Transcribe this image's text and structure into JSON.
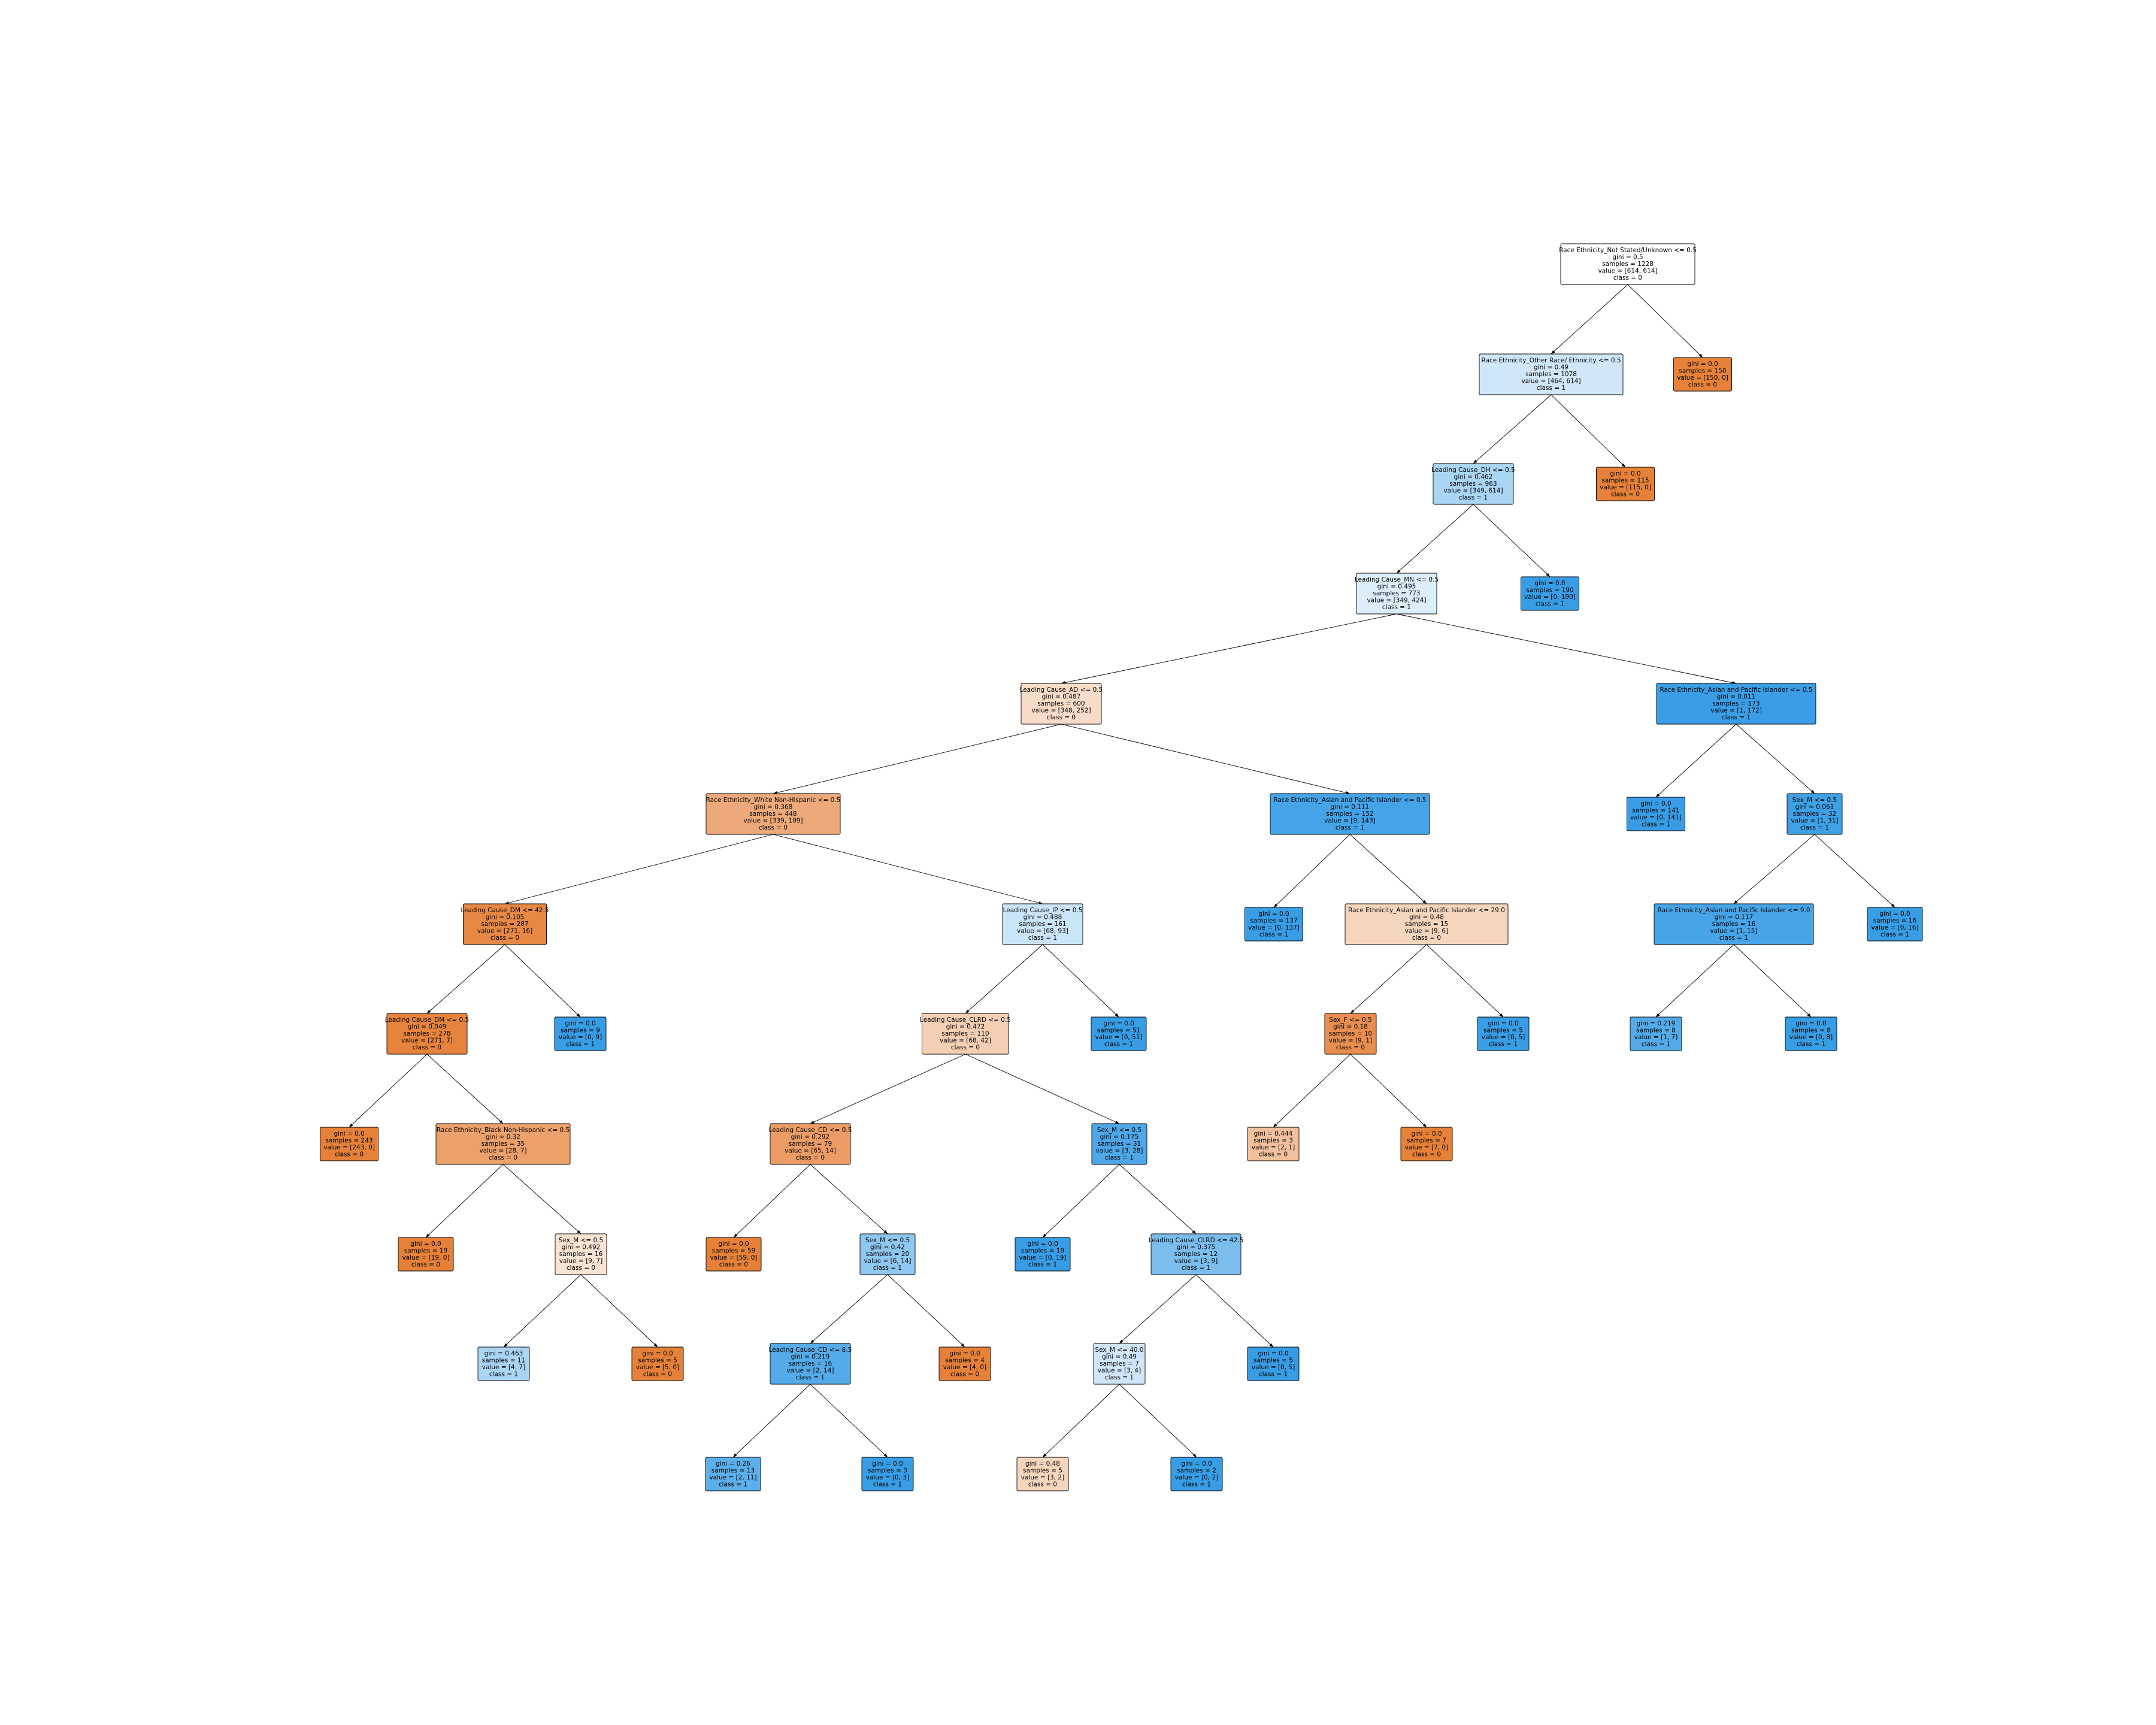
{
  "nodes": [
    {
      "id": "n0",
      "lines": [
        "Race Ethnicity_Not Stated/Unknown <= 0.5",
        "gini = 0.5",
        "samples = 1228",
        "value = [614, 614]",
        "class = 0"
      ],
      "fill": "#ffffff",
      "parent": null
    },
    {
      "id": "n1",
      "lines": [
        "Race Ethnicity_Other Race/ Ethnicity <= 0.5",
        "gini = 0.49",
        "samples = 1078",
        "value = [464, 614]",
        "class = 1"
      ],
      "fill": "#cfe7f9",
      "parent": "n0"
    },
    {
      "id": "n2",
      "lines": [
        "gini = 0.0",
        "samples = 150",
        "value = [150, 0]",
        "class = 0"
      ],
      "fill": "#e58139",
      "parent": "n0"
    },
    {
      "id": "n3",
      "lines": [
        "Leading Cause_DH <= 0.5",
        "gini = 0.462",
        "samples = 963",
        "value = [349, 614]",
        "class = 1"
      ],
      "fill": "#a9d4f4",
      "parent": "n1"
    },
    {
      "id": "n4",
      "lines": [
        "gini = 0.0",
        "samples = 115",
        "value = [115, 0]",
        "class = 0"
      ],
      "fill": "#e58139",
      "parent": "n1"
    },
    {
      "id": "n5",
      "lines": [
        "Leading Cause_MN <= 0.5",
        "gini = 0.495",
        "samples = 773",
        "value = [349, 424]",
        "class = 1"
      ],
      "fill": "#dceefa",
      "parent": "n3"
    },
    {
      "id": "n6",
      "lines": [
        "gini = 0.0",
        "samples = 190",
        "value = [0, 190]",
        "class = 1"
      ],
      "fill": "#399de5",
      "parent": "n3"
    },
    {
      "id": "n7",
      "lines": [
        "Leading Cause_AD <= 0.5",
        "gini = 0.487",
        "samples = 600",
        "value = [348, 252]",
        "class = 0"
      ],
      "fill": "#f8dcc8",
      "parent": "n5"
    },
    {
      "id": "n8",
      "lines": [
        "Race Ethnicity_Asian and Pacific Islander <= 0.5",
        "gini = 0.011",
        "samples = 173",
        "value = [1, 172]",
        "class = 1"
      ],
      "fill": "#3a9de5",
      "parent": "n5"
    },
    {
      "id": "n9",
      "lines": [
        "Race Ethnicity_White Non-Hispanic <= 0.5",
        "gini = 0.368",
        "samples = 448",
        "value = [339, 109]",
        "class = 0"
      ],
      "fill": "#eda979",
      "parent": "n7"
    },
    {
      "id": "n10",
      "lines": [
        "Race Ethnicity_Asian and Pacific Islander <= 0.5",
        "gini = 0.111",
        "samples = 152",
        "value = [9, 143]",
        "class = 1"
      ],
      "fill": "#45a3e7",
      "parent": "n7"
    },
    {
      "id": "n11",
      "lines": [
        "gini = 0.0",
        "samples = 141",
        "value = [0, 141]",
        "class = 1"
      ],
      "fill": "#399de5",
      "parent": "n8"
    },
    {
      "id": "n12",
      "lines": [
        "Sex_M <= 0.5",
        "gini = 0.061",
        "samples = 32",
        "value = [1, 31]",
        "class = 1"
      ],
      "fill": "#3fa0e6",
      "parent": "n8"
    },
    {
      "id": "n13",
      "lines": [
        "Leading Cause_DM <= 42.5",
        "gini = 0.105",
        "samples = 287",
        "value = [271, 16]",
        "class = 0"
      ],
      "fill": "#e78845",
      "parent": "n9"
    },
    {
      "id": "n14",
      "lines": [
        "Leading Cause_IP <= 0.5",
        "gini = 0.488",
        "samples = 161",
        "value = [68, 93]",
        "class = 1"
      ],
      "fill": "#cae5f8",
      "parent": "n9"
    },
    {
      "id": "n15",
      "lines": [
        "gini = 0.0",
        "samples = 137",
        "value = [0, 137]",
        "class = 1"
      ],
      "fill": "#399de5",
      "parent": "n10"
    },
    {
      "id": "n16",
      "lines": [
        "Race Ethnicity_Asian and Pacific Islander <= 29.0",
        "gini = 0.48",
        "samples = 15",
        "value = [9, 6]",
        "class = 0"
      ],
      "fill": "#f6d5bd",
      "parent": "n10"
    },
    {
      "id": "n17",
      "lines": [
        "Race Ethnicity_Asian and Pacific Islander <= 9.0",
        "gini = 0.117",
        "samples = 16",
        "value = [1, 15]",
        "class = 1"
      ],
      "fill": "#46a4e7",
      "parent": "n12"
    },
    {
      "id": "n18",
      "lines": [
        "gini = 0.0",
        "samples = 16",
        "value = [0, 16]",
        "class = 1"
      ],
      "fill": "#399de5",
      "parent": "n12"
    },
    {
      "id": "n19",
      "lines": [
        "Leading Cause_DM <= 0.5",
        "gini = 0.049",
        "samples = 278",
        "value = [271, 7]",
        "class = 0"
      ],
      "fill": "#e6843e",
      "parent": "n13"
    },
    {
      "id": "n20",
      "lines": [
        "gini = 0.0",
        "samples = 9",
        "value = [0, 9]",
        "class = 1"
      ],
      "fill": "#399de5",
      "parent": "n13"
    },
    {
      "id": "n21",
      "lines": [
        "Leading Cause_CLRD <= 0.5",
        "gini = 0.472",
        "samples = 110",
        "value = [68, 42]",
        "class = 0"
      ],
      "fill": "#f5cfb3",
      "parent": "n14"
    },
    {
      "id": "n22",
      "lines": [
        "gini = 0.0",
        "samples = 51",
        "value = [0, 51]",
        "class = 1"
      ],
      "fill": "#399de5",
      "parent": "n14"
    },
    {
      "id": "n23",
      "lines": [
        "Sex_F <= 0.5",
        "gini = 0.18",
        "samples = 10",
        "value = [9, 1]",
        "class = 0"
      ],
      "fill": "#e88f4f",
      "parent": "n16"
    },
    {
      "id": "n24",
      "lines": [
        "gini = 0.0",
        "samples = 5",
        "value = [0, 5]",
        "class = 1"
      ],
      "fill": "#399de5",
      "parent": "n16"
    },
    {
      "id": "n25",
      "lines": [
        "gini = 0.219",
        "samples = 8",
        "value = [1, 7]",
        "class = 1"
      ],
      "fill": "#55abe9",
      "parent": "n17"
    },
    {
      "id": "n26",
      "lines": [
        "gini = 0.0",
        "samples = 8",
        "value = [0, 8]",
        "class = 1"
      ],
      "fill": "#399de5",
      "parent": "n17"
    },
    {
      "id": "n27",
      "lines": [
        "gini = 0.0",
        "samples = 243",
        "value = [243, 0]",
        "class = 0"
      ],
      "fill": "#e58139",
      "parent": "n19"
    },
    {
      "id": "n28",
      "lines": [
        "Race Ethnicity_Black Non-Hispanic <= 0.5",
        "gini = 0.32",
        "samples = 35",
        "value = [28, 7]",
        "class = 0"
      ],
      "fill": "#eca06a",
      "parent": "n19"
    },
    {
      "id": "n29",
      "lines": [
        "Leading Cause_CD <= 0.5",
        "gini = 0.292",
        "samples = 79",
        "value = [65, 14]",
        "class = 0"
      ],
      "fill": "#eb9c64",
      "parent": "n21"
    },
    {
      "id": "n30",
      "lines": [
        "Sex_M <= 0.5",
        "gini = 0.175",
        "samples = 31",
        "value = [3, 28]",
        "class = 1"
      ],
      "fill": "#4ea7e8",
      "parent": "n21"
    },
    {
      "id": "n31",
      "lines": [
        "gini = 0.444",
        "samples = 3",
        "value = [2, 1]",
        "class = 0"
      ],
      "fill": "#f2c09c",
      "parent": "n23"
    },
    {
      "id": "n32",
      "lines": [
        "gini = 0.0",
        "samples = 7",
        "value = [7, 0]",
        "class = 0"
      ],
      "fill": "#e58139",
      "parent": "n23"
    },
    {
      "id": "n33",
      "lines": [
        "gini = 0.0",
        "samples = 19",
        "value = [19, 0]",
        "class = 0"
      ],
      "fill": "#e58139",
      "parent": "n28"
    },
    {
      "id": "n34",
      "lines": [
        "Sex_M <= 0.5",
        "gini = 0.492",
        "samples = 16",
        "value = [9, 7]",
        "class = 0"
      ],
      "fill": "#f9e3d3",
      "parent": "n28"
    },
    {
      "id": "n35",
      "lines": [
        "gini = 0.0",
        "samples = 59",
        "value = [59, 0]",
        "class = 0"
      ],
      "fill": "#e58139",
      "parent": "n29"
    },
    {
      "id": "n36",
      "lines": [
        "Sex_M <= 0.5",
        "gini = 0.42",
        "samples = 20",
        "value = [6, 14]",
        "class = 1"
      ],
      "fill": "#8ec7f0",
      "parent": "n29"
    },
    {
      "id": "n37",
      "lines": [
        "gini = 0.0",
        "samples = 19",
        "value = [0, 19]",
        "class = 1"
      ],
      "fill": "#399de5",
      "parent": "n30"
    },
    {
      "id": "n38",
      "lines": [
        "Leading Cause_CLRD <= 42.5",
        "gini = 0.375",
        "samples = 12",
        "value = [3, 9]",
        "class = 1"
      ],
      "fill": "#7bbeee",
      "parent": "n30"
    },
    {
      "id": "n39",
      "lines": [
        "gini = 0.463",
        "samples = 11",
        "value = [4, 7]",
        "class = 1"
      ],
      "fill": "#aad5f4",
      "parent": "n34"
    },
    {
      "id": "n40",
      "lines": [
        "gini = 0.0",
        "samples = 5",
        "value = [5, 0]",
        "class = 0"
      ],
      "fill": "#e58139",
      "parent": "n34"
    },
    {
      "id": "n41",
      "lines": [
        "Leading Cause_CD <= 8.5",
        "gini = 0.219",
        "samples = 16",
        "value = [2, 14]",
        "class = 1"
      ],
      "fill": "#55abe9",
      "parent": "n36"
    },
    {
      "id": "n42",
      "lines": [
        "gini = 0.0",
        "samples = 4",
        "value = [4, 0]",
        "class = 0"
      ],
      "fill": "#e58139",
      "parent": "n36"
    },
    {
      "id": "n43",
      "lines": [
        "Sex_M <= 40.0",
        "gini = 0.49",
        "samples = 7",
        "value = [3, 4]",
        "class = 1"
      ],
      "fill": "#cee6f8",
      "parent": "n38"
    },
    {
      "id": "n44",
      "lines": [
        "gini = 0.0",
        "samples = 5",
        "value = [0, 5]",
        "class = 1"
      ],
      "fill": "#399de5",
      "parent": "n38"
    },
    {
      "id": "n45",
      "lines": [
        "gini = 0.26",
        "samples = 13",
        "value = [2, 11]",
        "class = 1"
      ],
      "fill": "#5dafea",
      "parent": "n41"
    },
    {
      "id": "n46",
      "lines": [
        "gini = 0.0",
        "samples = 3",
        "value = [0, 3]",
        "class = 1"
      ],
      "fill": "#399de5",
      "parent": "n41"
    },
    {
      "id": "n47",
      "lines": [
        "gini = 0.48",
        "samples = 5",
        "value = [3, 2]",
        "class = 0"
      ],
      "fill": "#f6d5bd",
      "parent": "n43"
    },
    {
      "id": "n48",
      "lines": [
        "gini = 0.0",
        "samples = 2",
        "value = [0, 2]",
        "class = 1"
      ],
      "fill": "#399de5",
      "parent": "n43"
    }
  ]
}
